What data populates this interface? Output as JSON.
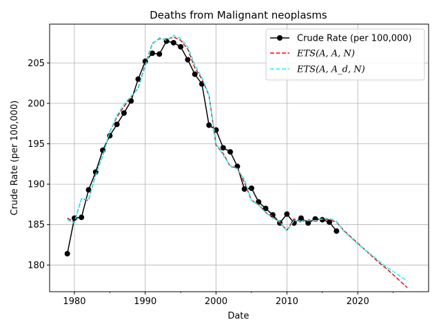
{
  "chart_data": {
    "type": "line",
    "title": "Deaths from Malignant neoplasms",
    "xlabel": "Date",
    "ylabel": "Crude Rate (per 100,000)",
    "xlim": [
      1976.5,
      2030.0
    ],
    "ylim": [
      176.7,
      209.8
    ],
    "xticks": [
      1980,
      1990,
      2000,
      2010,
      2020
    ],
    "yticks": [
      180,
      185,
      190,
      195,
      200,
      205
    ],
    "grid": true,
    "legend": "top-right",
    "series": [
      {
        "name": "Crude Rate (per 100,000)",
        "style": "line-marker",
        "color": "#000000",
        "x": [
          1979,
          1980,
          1981,
          1982,
          1983,
          1984,
          1985,
          1986,
          1987,
          1988,
          1989,
          1990,
          1991,
          1992,
          1993,
          1994,
          1995,
          1996,
          1997,
          1998,
          1999,
          2000,
          2001,
          2002,
          2003,
          2004,
          2005,
          2006,
          2007,
          2008,
          2009,
          2010,
          2011,
          2012,
          2013,
          2014,
          2015,
          2016,
          2017
        ],
        "y": [
          181.4,
          185.8,
          185.9,
          189.3,
          191.5,
          194.2,
          196.0,
          197.4,
          198.8,
          200.3,
          203.0,
          205.2,
          206.2,
          206.1,
          207.7,
          207.5,
          207.0,
          205.4,
          203.6,
          202.4,
          197.3,
          196.7,
          194.5,
          194.0,
          192.2,
          189.4,
          189.5,
          187.8,
          187.0,
          186.2,
          185.2,
          186.3,
          185.2,
          185.8,
          185.2,
          185.7,
          185.6,
          185.3,
          184.2
        ]
      },
      {
        "name": "ETS(A, A, N)",
        "style": "dashed",
        "color": "#ff0000",
        "x": [
          1979,
          1980,
          1981,
          1982,
          1983,
          1984,
          1985,
          1986,
          1987,
          1988,
          1989,
          1990,
          1991,
          1992,
          1993,
          1994,
          1995,
          1996,
          1997,
          1998,
          1999,
          2000,
          2001,
          2002,
          2003,
          2004,
          2005,
          2006,
          2007,
          2008,
          2009,
          2010,
          2011,
          2012,
          2013,
          2014,
          2015,
          2016,
          2017,
          2018,
          2019,
          2020,
          2021,
          2022,
          2023,
          2024,
          2025,
          2026,
          2027
        ],
        "y": [
          185.8,
          185.3,
          188.2,
          188.0,
          191.2,
          193.5,
          196.5,
          198.3,
          199.6,
          200.8,
          201.9,
          204.8,
          207.4,
          208.0,
          207.9,
          208.2,
          207.8,
          206.7,
          204.4,
          203.0,
          201.0,
          194.8,
          193.8,
          192.2,
          192.0,
          190.2,
          188.0,
          187.5,
          186.5,
          186.0,
          185.2,
          184.3,
          185.7,
          185.3,
          185.6,
          185.4,
          185.7,
          185.6,
          185.3,
          184.3,
          183.5,
          182.7,
          181.9,
          181.1,
          180.3,
          179.6,
          178.8,
          178.0,
          177.2
        ]
      },
      {
        "name": "ETS(A, A_d, N)",
        "style": "dashed",
        "color": "#00ffff",
        "x": [
          1979,
          1980,
          1981,
          1982,
          1983,
          1984,
          1985,
          1986,
          1987,
          1988,
          1989,
          1990,
          1991,
          1992,
          1993,
          1994,
          1995,
          1996,
          1997,
          1998,
          1999,
          2000,
          2001,
          2002,
          2003,
          2004,
          2005,
          2006,
          2007,
          2008,
          2009,
          2010,
          2011,
          2012,
          2013,
          2014,
          2015,
          2016,
          2017,
          2018,
          2019,
          2020,
          2021,
          2022,
          2023,
          2024,
          2025,
          2026,
          2027
        ],
        "y": [
          185.6,
          185.2,
          188.2,
          188.1,
          191.1,
          193.5,
          196.5,
          198.5,
          199.9,
          200.9,
          201.8,
          204.6,
          207.3,
          208.1,
          207.8,
          208.4,
          208.0,
          207.0,
          204.8,
          203.2,
          201.0,
          195.0,
          193.6,
          192.3,
          191.9,
          190.6,
          188.0,
          187.4,
          186.5,
          185.8,
          185.4,
          184.2,
          185.5,
          185.4,
          185.5,
          185.5,
          185.7,
          185.8,
          185.4,
          184.2,
          183.4,
          182.6,
          181.9,
          181.2,
          180.5,
          179.8,
          179.2,
          178.6,
          178.0
        ]
      }
    ]
  }
}
